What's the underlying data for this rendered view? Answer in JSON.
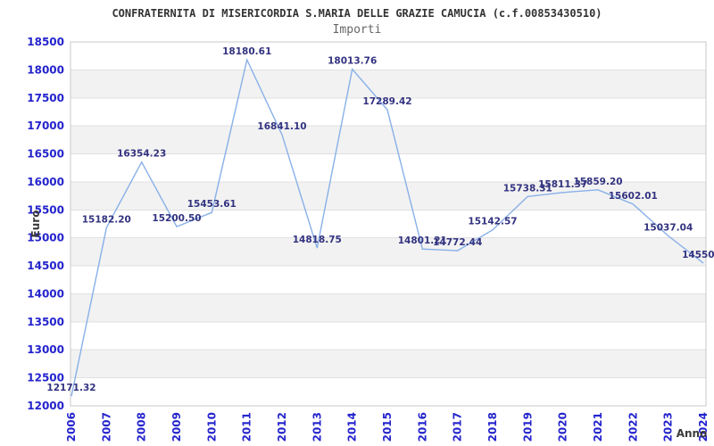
{
  "header": {
    "title": "CONFRATERNITA DI MISERICORDIA S.MARIA DELLE GRAZIE CAMUCIA (c.f.00853430510)",
    "subtitle": "Importi"
  },
  "chart_data": {
    "type": "line",
    "title": "Importi",
    "xlabel": "Anno",
    "ylabel": "Euro",
    "x": [
      "2006",
      "2007",
      "2008",
      "2009",
      "2010",
      "2011",
      "2012",
      "2013",
      "2014",
      "2015",
      "2016",
      "2017",
      "2018",
      "2019",
      "2020",
      "2021",
      "2022",
      "2023",
      "2024"
    ],
    "series": [
      {
        "name": "Importi",
        "values": [
          12171.32,
          15182.2,
          16354.23,
          15200.5,
          15453.61,
          18180.61,
          16841.1,
          14818.75,
          18013.76,
          17289.42,
          14801.21,
          14772.44,
          15142.57,
          15738.31,
          15811.37,
          15859.2,
          15602.01,
          15037.04,
          14550.0
        ],
        "point_labels": [
          "12171.32",
          "15182.20",
          "16354.23",
          "15200.50",
          "15453.61",
          "18180.61",
          "16841.10",
          "14818.75",
          "18013.76",
          "17289.42",
          "14801.21",
          "14772.44",
          "15142.57",
          "15738.31",
          "15811.37",
          "15859.20",
          "15602.01",
          "15037.04",
          "14550.0"
        ]
      }
    ],
    "ylim": [
      12000,
      18500
    ],
    "ytick_step": 500,
    "grid": "horizontal-bands-alternating",
    "legend": "none",
    "colors": {
      "line": "#88b0e8",
      "tick_label": "#2424cd",
      "point_label": "#333380",
      "band": "#f2f2f2",
      "gridline": "#e0e0e0",
      "border": "#c8c8c8",
      "title": "#333333",
      "subtitle": "#666666",
      "axis_title": "#3a3a3a"
    }
  }
}
